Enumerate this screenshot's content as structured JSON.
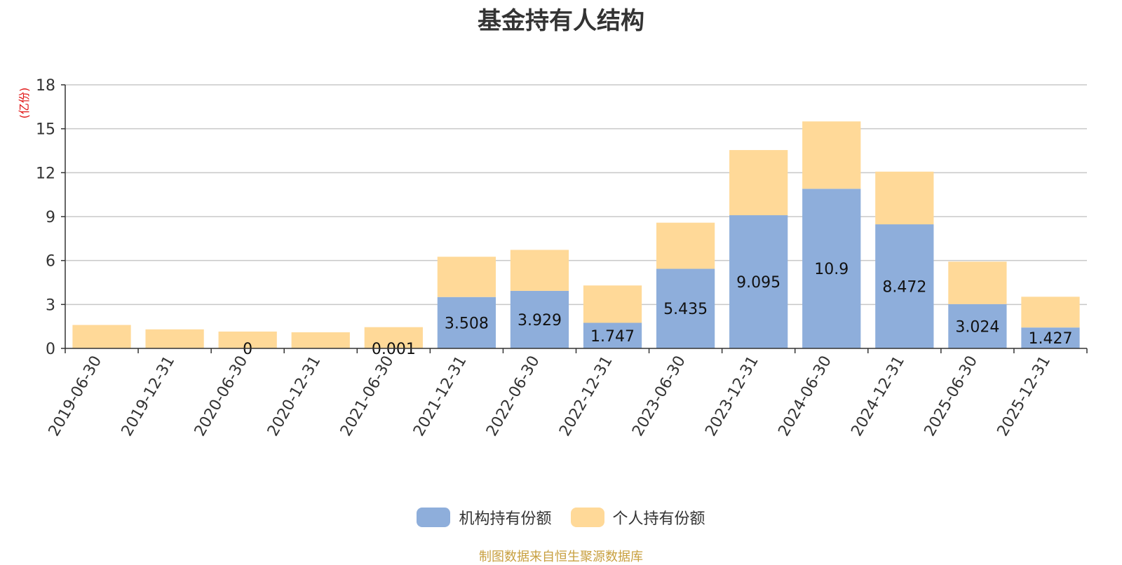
{
  "chart_data": {
    "type": "bar",
    "stacked": true,
    "title": "基金持有人结构",
    "unit_label": "(亿份)",
    "ylim": [
      0,
      18
    ],
    "yticks": [
      0,
      3,
      6,
      9,
      12,
      15,
      18
    ],
    "grid": true,
    "legend_position": "bottom",
    "categories": [
      "2019-06-30",
      "2019-12-31",
      "2020-06-30",
      "2020-12-31",
      "2021-06-30",
      "2021-12-31",
      "2022-06-30",
      "2022-12-31",
      "2023-06-30",
      "2023-12-31",
      "2024-06-30",
      "2024-12-31",
      "2025-06-30",
      "2025-12-31"
    ],
    "series": [
      {
        "name": "机构持有份额",
        "color": "#8eaedb",
        "values": [
          0,
          0,
          0,
          0,
          0.001,
          3.508,
          3.929,
          1.747,
          5.435,
          9.095,
          10.9,
          8.472,
          3.024,
          1.427
        ],
        "labels": [
          "",
          "",
          "0",
          "",
          "0.001",
          "3.508",
          "3.929",
          "1.747",
          "5.435",
          "9.095",
          "10.9",
          "8.472",
          "3.024",
          "1.427"
        ]
      },
      {
        "name": "个人持有份额",
        "color": "#ffd998",
        "values": [
          1.6,
          1.3,
          1.15,
          1.1,
          1.45,
          2.75,
          2.8,
          2.55,
          3.15,
          4.45,
          4.6,
          3.6,
          2.9,
          2.1
        ]
      }
    ]
  },
  "source_note": "制图数据来自恒生聚源数据库"
}
